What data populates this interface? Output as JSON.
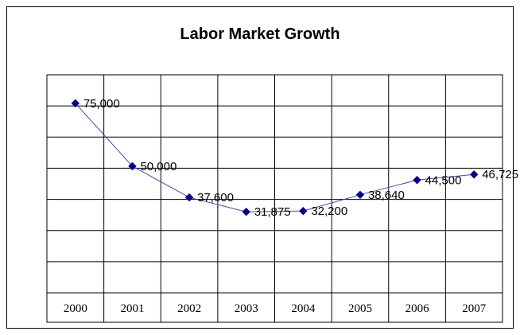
{
  "chart_data": {
    "type": "line",
    "title": "Labor Market Growth",
    "xlabel": "",
    "ylabel": "",
    "categories": [
      "2000",
      "2001",
      "2002",
      "2003",
      "2004",
      "2005",
      "2006",
      "2007"
    ],
    "values": [
      75000,
      50000,
      37600,
      31875,
      32200,
      38640,
      44500,
      46725
    ],
    "data_labels": [
      "75,000",
      "50,000",
      "37,600",
      "31,875",
      "32,200",
      "38,640",
      "44,500",
      "46,725"
    ],
    "ylim": [
      0,
      80000
    ],
    "grid": true,
    "legend": "none",
    "colors": {
      "line": "#4a4aa8",
      "marker": "#000080",
      "grid": "#000000"
    }
  }
}
